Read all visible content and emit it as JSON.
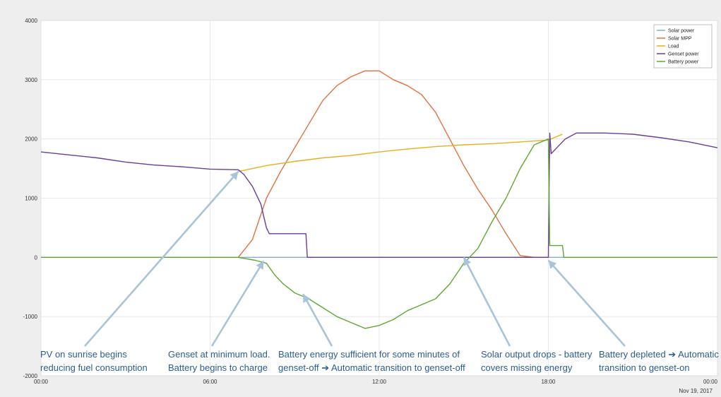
{
  "chart_data": {
    "type": "line",
    "xlim": [
      0,
      24
    ],
    "ylim": [
      -2000,
      4000
    ],
    "x_ticks": [
      {
        "value": 0,
        "label": "00:00"
      },
      {
        "value": 6,
        "label": "06:00"
      },
      {
        "value": 12,
        "label": "12:00"
      },
      {
        "value": 18,
        "label": "18:00"
      },
      {
        "value": 24,
        "label": "00:00"
      }
    ],
    "y_ticks": [
      -2000,
      -1000,
      0,
      1000,
      2000,
      3000,
      4000
    ],
    "date_label": "Nov 19, 2017",
    "grid": true,
    "legend_position": "top-right",
    "series": [
      {
        "name": "Solar power",
        "color": "#7fb3d5",
        "x": [
          0,
          24
        ],
        "y": [
          0,
          0
        ]
      },
      {
        "name": "Solar MPP",
        "color": "#e07040",
        "x": [
          7.0,
          7.5,
          8.0,
          8.5,
          9.0,
          9.5,
          10.0,
          10.5,
          11.0,
          11.5,
          12.0,
          12.5,
          13.0,
          13.5,
          14.0,
          14.5,
          15.0,
          15.5,
          16.0,
          16.5,
          17.0,
          17.5,
          18.0
        ],
        "y": [
          0,
          300,
          1000,
          1450,
          1850,
          2250,
          2650,
          2900,
          3050,
          3150,
          3150,
          3000,
          2900,
          2750,
          2450,
          2000,
          1550,
          1150,
          800,
          400,
          30,
          0,
          0
        ]
      },
      {
        "name": "Load",
        "color": "#e8b020",
        "x": [
          7.0,
          8.0,
          9.0,
          10.0,
          11.0,
          12.0,
          13.0,
          14.0,
          15.0,
          16.0,
          17.0,
          18.0,
          18.5
        ],
        "y": [
          1450,
          1550,
          1620,
          1680,
          1720,
          1780,
          1830,
          1870,
          1900,
          1920,
          1950,
          1980,
          2080
        ]
      },
      {
        "name": "Genset power",
        "color": "#6a3d9a",
        "x": [
          0,
          1,
          2,
          3,
          4,
          5,
          6,
          7.0,
          7.2,
          7.5,
          7.8,
          7.9,
          8.0,
          8.1,
          8.2,
          9.4,
          9.45,
          18.0,
          18.05,
          18.1,
          18.3,
          18.6,
          19,
          20,
          21,
          22,
          23,
          24
        ],
        "y": [
          1780,
          1730,
          1680,
          1610,
          1560,
          1530,
          1490,
          1480,
          1400,
          1200,
          900,
          700,
          500,
          400,
          400,
          400,
          0,
          0,
          2100,
          1750,
          1850,
          2000,
          2100,
          2100,
          2080,
          2020,
          1950,
          1850
        ]
      },
      {
        "name": "Battery power",
        "color": "#5fa832",
        "x": [
          0,
          7.0,
          7.6,
          8.0,
          8.3,
          8.6,
          9.0,
          9.5,
          10.0,
          10.5,
          11.0,
          11.5,
          12.0,
          12.5,
          13.0,
          13.5,
          14.0,
          14.5,
          15.0,
          15.5,
          16.0,
          16.5,
          17.0,
          17.5,
          18.0,
          18.05,
          18.5,
          18.55,
          19,
          20,
          21,
          22,
          23,
          24
        ],
        "y": [
          0,
          0,
          -50,
          -100,
          -300,
          -450,
          -600,
          -700,
          -850,
          -1000,
          -1100,
          -1200,
          -1150,
          -1050,
          -900,
          -800,
          -700,
          -450,
          -100,
          150,
          600,
          1000,
          1500,
          1900,
          2000,
          200,
          200,
          0,
          0,
          0,
          0,
          0,
          0,
          0
        ]
      }
    ],
    "annotations": [
      {
        "lines": [
          "PV on sunrise begins",
          "reducing fuel consumption"
        ],
        "target": [
          7.0,
          1450
        ]
      },
      {
        "lines": [
          "Genset at minimum load.",
          "Battery begins to charge"
        ],
        "target": [
          7.9,
          -60
        ]
      },
      {
        "lines": [
          "Battery energy sufficient for some minutes of",
          "genset-off ➔ Automatic transition to genset-off"
        ],
        "target": [
          9.3,
          -620
        ]
      },
      {
        "lines": [
          "Solar output drops - battery",
          "covers missing energy"
        ],
        "target": [
          15.0,
          0
        ]
      },
      {
        "lines": [
          "Battery depleted ➔ Automatic",
          "transition to genset-on"
        ],
        "target": [
          18.0,
          -50
        ]
      }
    ]
  }
}
